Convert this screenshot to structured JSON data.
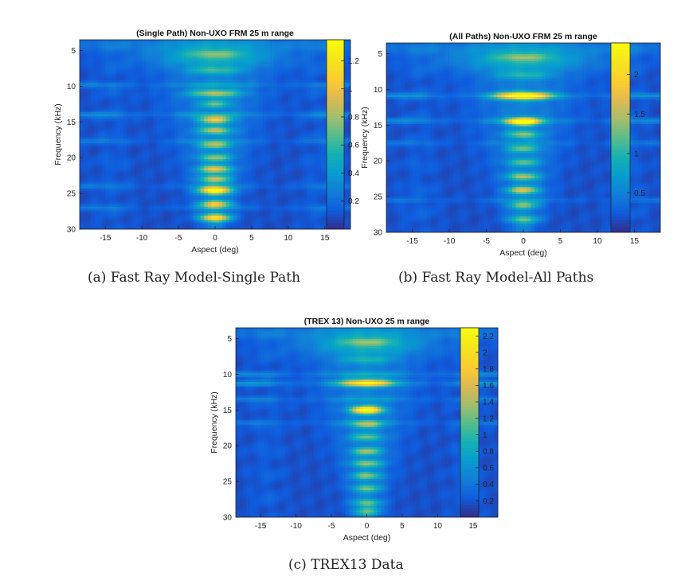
{
  "chart_data": [
    {
      "type": "heatmap",
      "title": "(Single Path) Non-UXO FRM 25 m range",
      "xlabel": "Aspect (deg)",
      "ylabel": "Frequency (kHz)",
      "xlim": [
        -18.5,
        18.5
      ],
      "ylim": [
        3.5,
        30
      ],
      "y_reversed": true,
      "x_ticks": [
        -15,
        -10,
        -5,
        0,
        5,
        10,
        15
      ],
      "y_ticks": [
        5,
        10,
        15,
        20,
        25,
        30
      ],
      "colorbar_ticks": [
        0.2,
        0.4,
        0.6,
        0.8,
        1,
        1.2
      ],
      "colorbar_range": [
        0,
        1.35
      ],
      "colormap": "parula",
      "grid": false,
      "caption": "(a) Fast Ray Model-Single Path"
    },
    {
      "type": "heatmap",
      "title": "(All Paths) Non-UXO FRM 25 m range",
      "xlabel": "Aspect (deg)",
      "ylabel": "Frequency (kHz)",
      "xlim": [
        -18.5,
        18.5
      ],
      "ylim": [
        3.5,
        30
      ],
      "y_reversed": true,
      "x_ticks": [
        -15,
        -10,
        -5,
        0,
        5,
        10,
        15
      ],
      "y_ticks": [
        5,
        10,
        15,
        20,
        25,
        30
      ],
      "colorbar_ticks": [
        0.5,
        1,
        1.5,
        2
      ],
      "colorbar_range": [
        0,
        2.4
      ],
      "colormap": "parula",
      "grid": false,
      "caption": "(b) Fast Ray Model-All Paths"
    },
    {
      "type": "heatmap",
      "title": "(TREX 13) Non-UXO 25 m range",
      "xlabel": "Aspect (deg)",
      "ylabel": "Frequency (kHz)",
      "xlim": [
        -18.5,
        18.5
      ],
      "ylim": [
        3.5,
        30
      ],
      "y_reversed": true,
      "x_ticks": [
        -15,
        -10,
        -5,
        0,
        5,
        10,
        15
      ],
      "y_ticks": [
        5,
        10,
        15,
        20,
        25,
        30
      ],
      "colorbar_ticks": [
        0.2,
        0.4,
        0.6,
        0.8,
        1,
        1.2,
        1.4,
        1.6,
        1.8,
        2,
        2.2
      ],
      "colorbar_range": [
        0,
        2.3
      ],
      "colormap": "parula",
      "grid": false,
      "caption": "(c) TREX13 Data"
    }
  ]
}
